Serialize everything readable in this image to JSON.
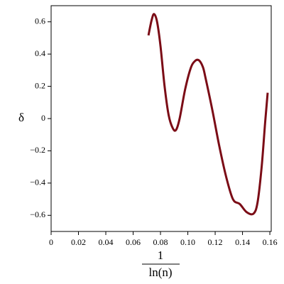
{
  "chart_data": {
    "type": "line",
    "x_label": {
      "numerator": "1",
      "denominator": "ln(n)"
    },
    "y_label": "δ",
    "x": [
      0.0712,
      0.0735,
      0.0753,
      0.0775,
      0.08,
      0.083,
      0.086,
      0.089,
      0.0914,
      0.094,
      0.098,
      0.102,
      0.105,
      0.108,
      0.111,
      0.113,
      0.118,
      0.123,
      0.128,
      0.133,
      0.138,
      0.143,
      0.148,
      0.151,
      0.154,
      0.1565,
      0.1584
    ],
    "series": [
      {
        "color": "#7b0c16",
        "values": [
          0.516,
          0.61,
          0.648,
          0.6,
          0.45,
          0.2,
          0.02,
          -0.06,
          -0.07,
          0.0,
          0.18,
          0.31,
          0.355,
          0.362,
          0.32,
          0.25,
          0.05,
          -0.17,
          -0.36,
          -0.5,
          -0.53,
          -0.58,
          -0.59,
          -0.52,
          -0.3,
          -0.03,
          0.16
        ]
      }
    ],
    "xlim": [
      0,
      0.161
    ],
    "ylim": [
      -0.7,
      0.7
    ],
    "xticks": [
      0,
      0.02,
      0.04,
      0.06,
      0.08,
      {
        "value": 0.1,
        "label": "0.10"
      },
      0.12,
      0.14,
      0.16
    ],
    "yticks": [
      {
        "value": -0.6,
        "label": "−0.6"
      },
      {
        "value": -0.4,
        "label": "−0.4"
      },
      {
        "value": -0.2,
        "label": "−0.2"
      },
      0,
      0.2,
      0.4,
      0.6
    ]
  }
}
